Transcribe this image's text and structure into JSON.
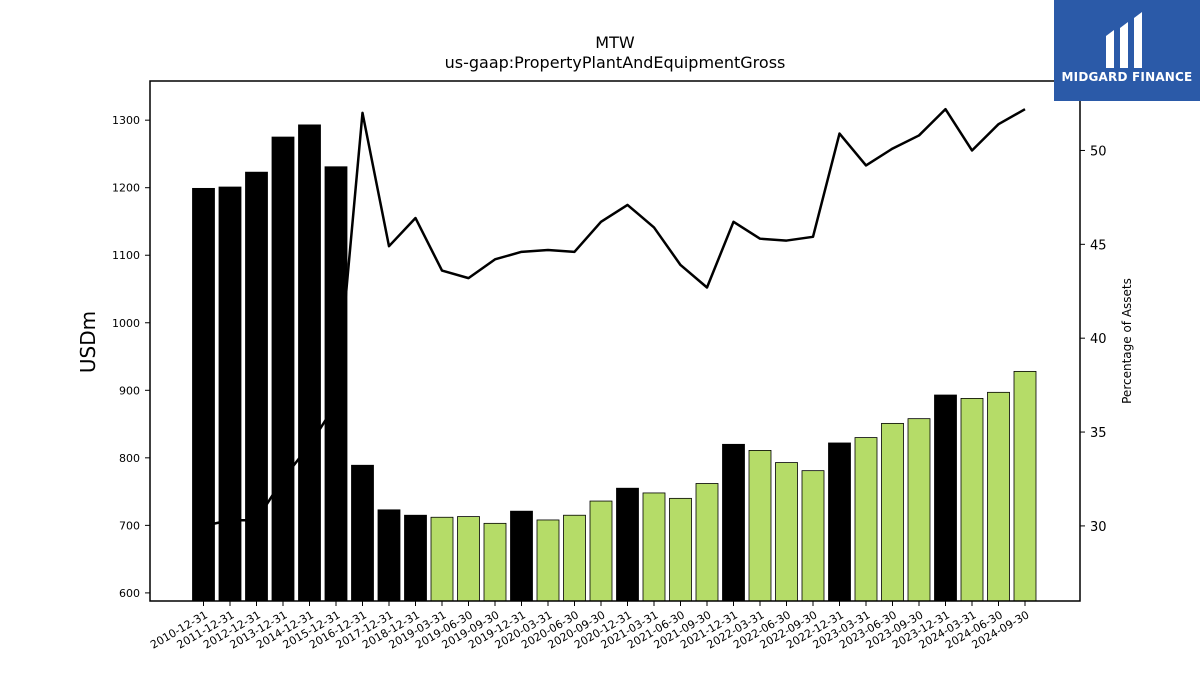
{
  "chart_data": {
    "type": "bar",
    "title": "MTW",
    "subtitle": "us-gaap:PropertyPlantAndEquipmentGross",
    "ylabel": "USDm",
    "y2label": "Percentage of Assets",
    "ylim": [
      588,
      1358
    ],
    "y2lim": [
      26,
      53.7
    ],
    "yticks": [
      600,
      700,
      800,
      900,
      1000,
      1100,
      1200,
      1300
    ],
    "y2ticks": [
      30,
      35,
      40,
      45,
      50
    ],
    "colors": {
      "annual": "#000000",
      "quarterly": "#b5dc68",
      "line": "#000000"
    },
    "categories": [
      "2010-12-31",
      "2011-12-31",
      "2012-12-31",
      "2013-12-31",
      "2014-12-31",
      "2015-12-31",
      "2016-12-31",
      "2017-12-31",
      "2018-12-31",
      "2019-03-31",
      "2019-06-30",
      "2019-09-30",
      "2019-12-31",
      "2020-03-31",
      "2020-06-30",
      "2020-09-30",
      "2020-12-31",
      "2021-03-31",
      "2021-06-30",
      "2021-09-30",
      "2021-12-31",
      "2022-03-31",
      "2022-06-30",
      "2022-09-30",
      "2022-12-31",
      "2023-03-31",
      "2023-06-30",
      "2023-09-30",
      "2023-12-31",
      "2024-03-31",
      "2024-06-30",
      "2024-09-30"
    ],
    "period_type": [
      "annual",
      "annual",
      "annual",
      "annual",
      "annual",
      "annual",
      "annual",
      "annual",
      "annual",
      "quarterly",
      "quarterly",
      "quarterly",
      "annual",
      "quarterly",
      "quarterly",
      "quarterly",
      "annual",
      "quarterly",
      "quarterly",
      "quarterly",
      "annual",
      "quarterly",
      "quarterly",
      "quarterly",
      "annual",
      "quarterly",
      "quarterly",
      "quarterly",
      "annual",
      "quarterly",
      "quarterly",
      "quarterly"
    ],
    "series": [
      {
        "type": "bar",
        "axis": "left",
        "values": [
          1199,
          1201,
          1223,
          1275,
          1293,
          1231,
          789,
          723,
          715,
          712,
          713,
          703,
          721,
          708,
          715,
          736,
          755,
          748,
          740,
          762,
          820,
          811,
          793,
          781,
          822,
          830,
          851,
          858,
          893,
          888,
          897,
          928
        ]
      },
      {
        "type": "line",
        "axis": "right",
        "values": [
          30.0,
          30.3,
          30.3,
          32.5,
          34.3,
          36.5,
          52.0,
          44.9,
          46.4,
          43.6,
          43.2,
          44.2,
          44.6,
          44.7,
          44.6,
          46.2,
          47.1,
          45.9,
          43.9,
          42.7,
          46.2,
          45.3,
          45.2,
          45.4,
          50.9,
          49.2,
          50.1,
          50.8,
          52.2,
          50.0,
          51.4,
          52.2
        ]
      }
    ]
  },
  "logo": {
    "text": "MIDGARD FINANCE"
  }
}
